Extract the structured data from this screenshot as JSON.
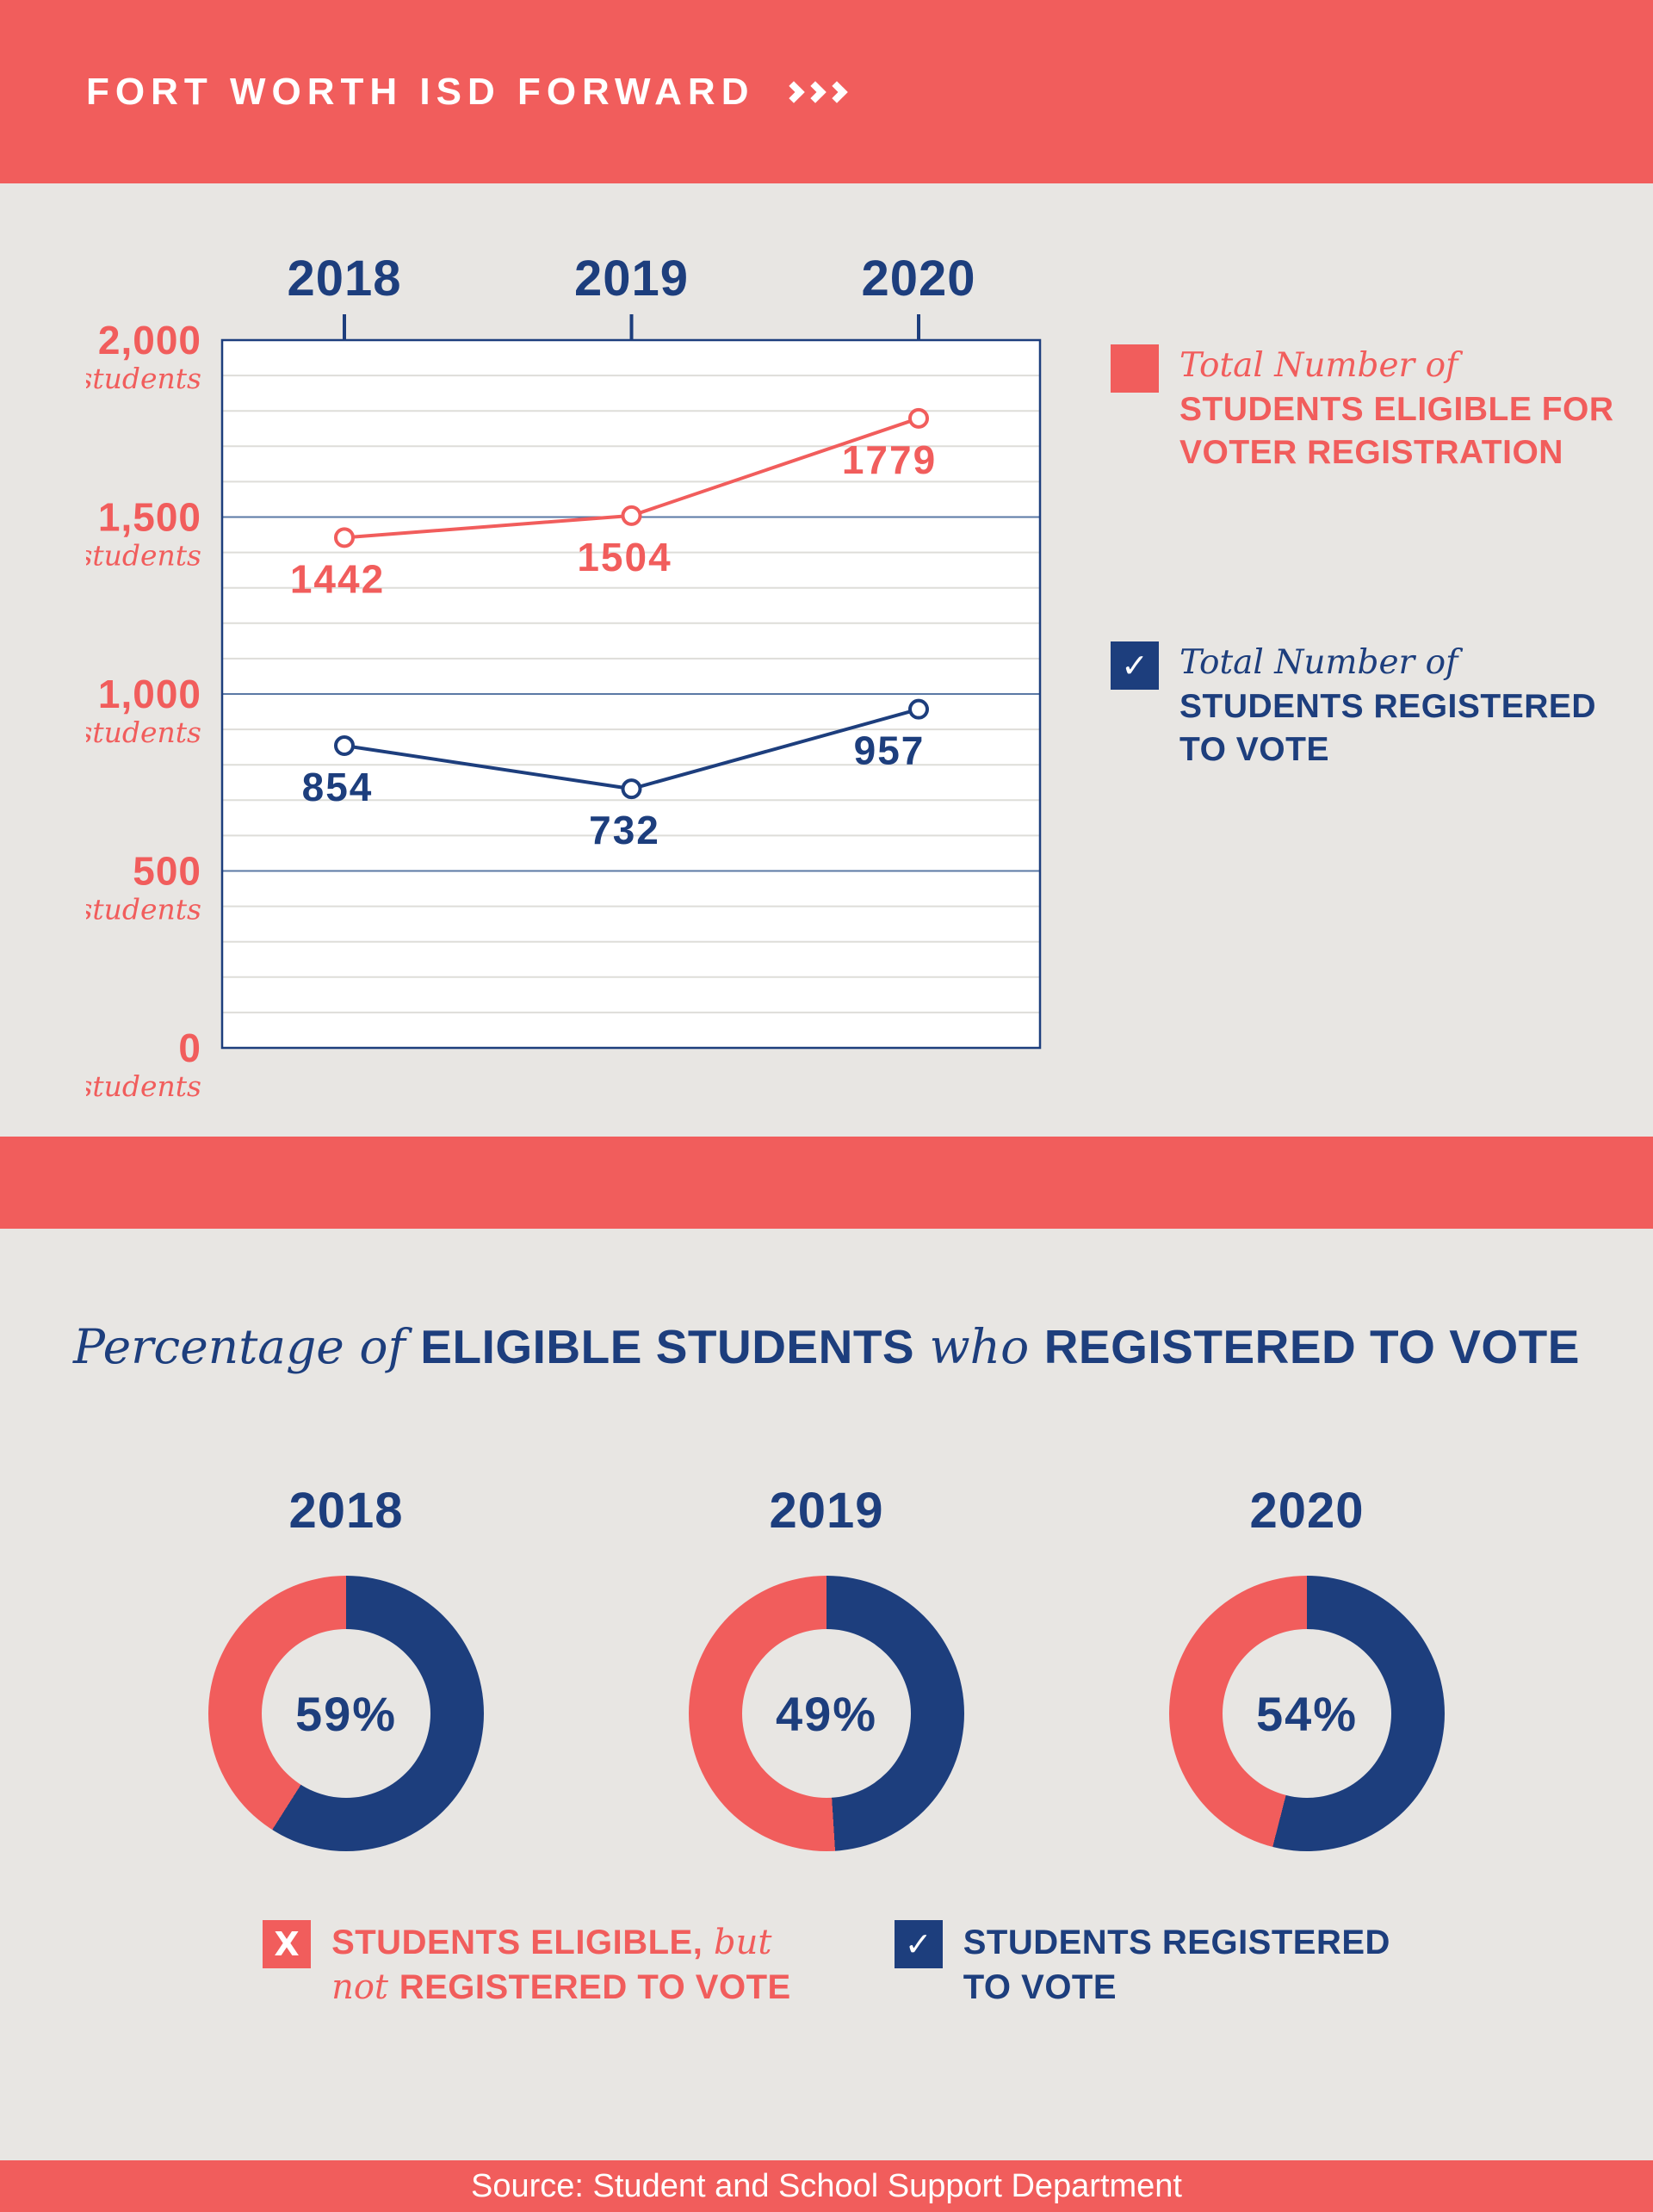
{
  "colors": {
    "coral": "#F15D5C",
    "navy": "#1D3E7D",
    "background": "#E8E6E3",
    "chart_background": "#FFFFFF"
  },
  "icons": {
    "check": "✓",
    "x": "X"
  },
  "header": {
    "title": "FORT WORTH ISD FORWARD"
  },
  "chart_section": {
    "legend_eligible": {
      "prefix": "Total Number of",
      "line1": "STUDENTS ELIGIBLE FOR",
      "line2": "VOTER REGISTRATION"
    },
    "legend_registered": {
      "prefix": "Total Number of",
      "line1": "STUDENTS REGISTERED",
      "line2": "TO VOTE"
    }
  },
  "percent_section": {
    "title": {
      "part1": "Percentage of ",
      "part2": "ELIGIBLE STUDENTS",
      "part3": " who ",
      "part4": "REGISTERED TO VOTE"
    },
    "legend_not_registered": {
      "line1_bold": "STUDENTS ELIGIBLE,",
      "line1_italic": " but",
      "line2_italic": "not ",
      "line2_bold": "REGISTERED TO VOTE"
    },
    "legend_registered": {
      "line1": "STUDENTS REGISTERED",
      "line2": "TO VOTE"
    }
  },
  "footer": {
    "source": "Source: Student and School Support Department"
  },
  "chart_data": [
    {
      "type": "line",
      "x": [
        "2018",
        "2019",
        "2020"
      ],
      "series": [
        {
          "name": "Total Number of Students Eligible for Voter Registration",
          "color": "#F15D5C",
          "values": [
            1442,
            1504,
            1779
          ],
          "label_dx": [
            -8,
            -8,
            -34
          ]
        },
        {
          "name": "Total Number of Students Registered to Vote",
          "color": "#1D3E7D",
          "values": [
            854,
            732,
            957
          ],
          "label_dx": [
            -8,
            -8,
            -34
          ]
        }
      ],
      "ylim": [
        0,
        2000
      ],
      "yticks": [
        {
          "value": 2000,
          "label": "2,000"
        },
        {
          "value": 1500,
          "label": "1,500"
        },
        {
          "value": 1000,
          "label": "1,000"
        },
        {
          "value": 500,
          "label": "500"
        },
        {
          "value": 0,
          "label": "0"
        }
      ],
      "ytick_unit": "students",
      "grid": {
        "minor_step": 100,
        "major_step": 500
      },
      "legend_position": "right"
    },
    {
      "type": "pie",
      "title": "Percentage of Eligible Students who Registered to Vote",
      "donuts": [
        {
          "year": "2018",
          "registered_pct": 59,
          "not_registered_pct": 41
        },
        {
          "year": "2019",
          "registered_pct": 49,
          "not_registered_pct": 51
        },
        {
          "year": "2020",
          "registered_pct": 54,
          "not_registered_pct": 46
        }
      ],
      "segment_colors": {
        "registered": "#1D3E7D",
        "not_registered": "#F15D5C"
      }
    }
  ]
}
